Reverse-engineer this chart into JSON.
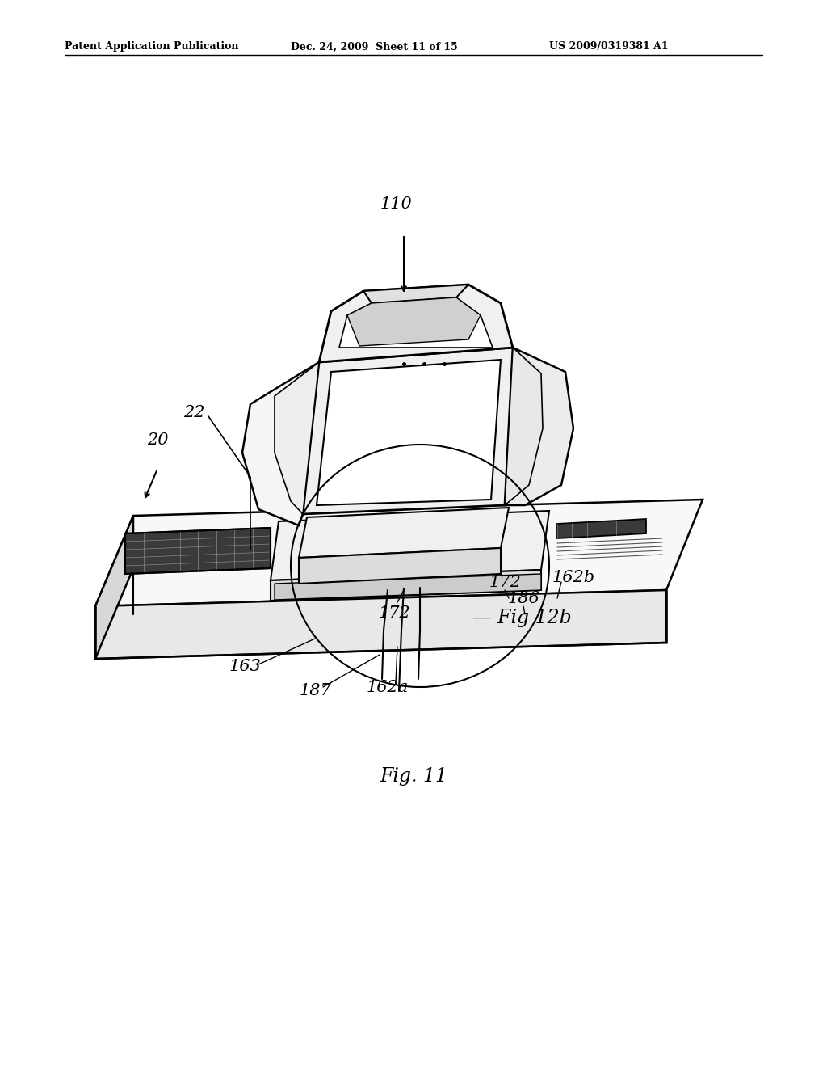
{
  "bg_color": "#ffffff",
  "header_left": "Patent Application Publication",
  "header_mid": "Dec. 24, 2009  Sheet 11 of 15",
  "header_right": "US 2009/0319381 A1",
  "fig_label": "Fig. 11",
  "line_color": "#000000",
  "page_width": 10.24,
  "page_height": 13.2
}
